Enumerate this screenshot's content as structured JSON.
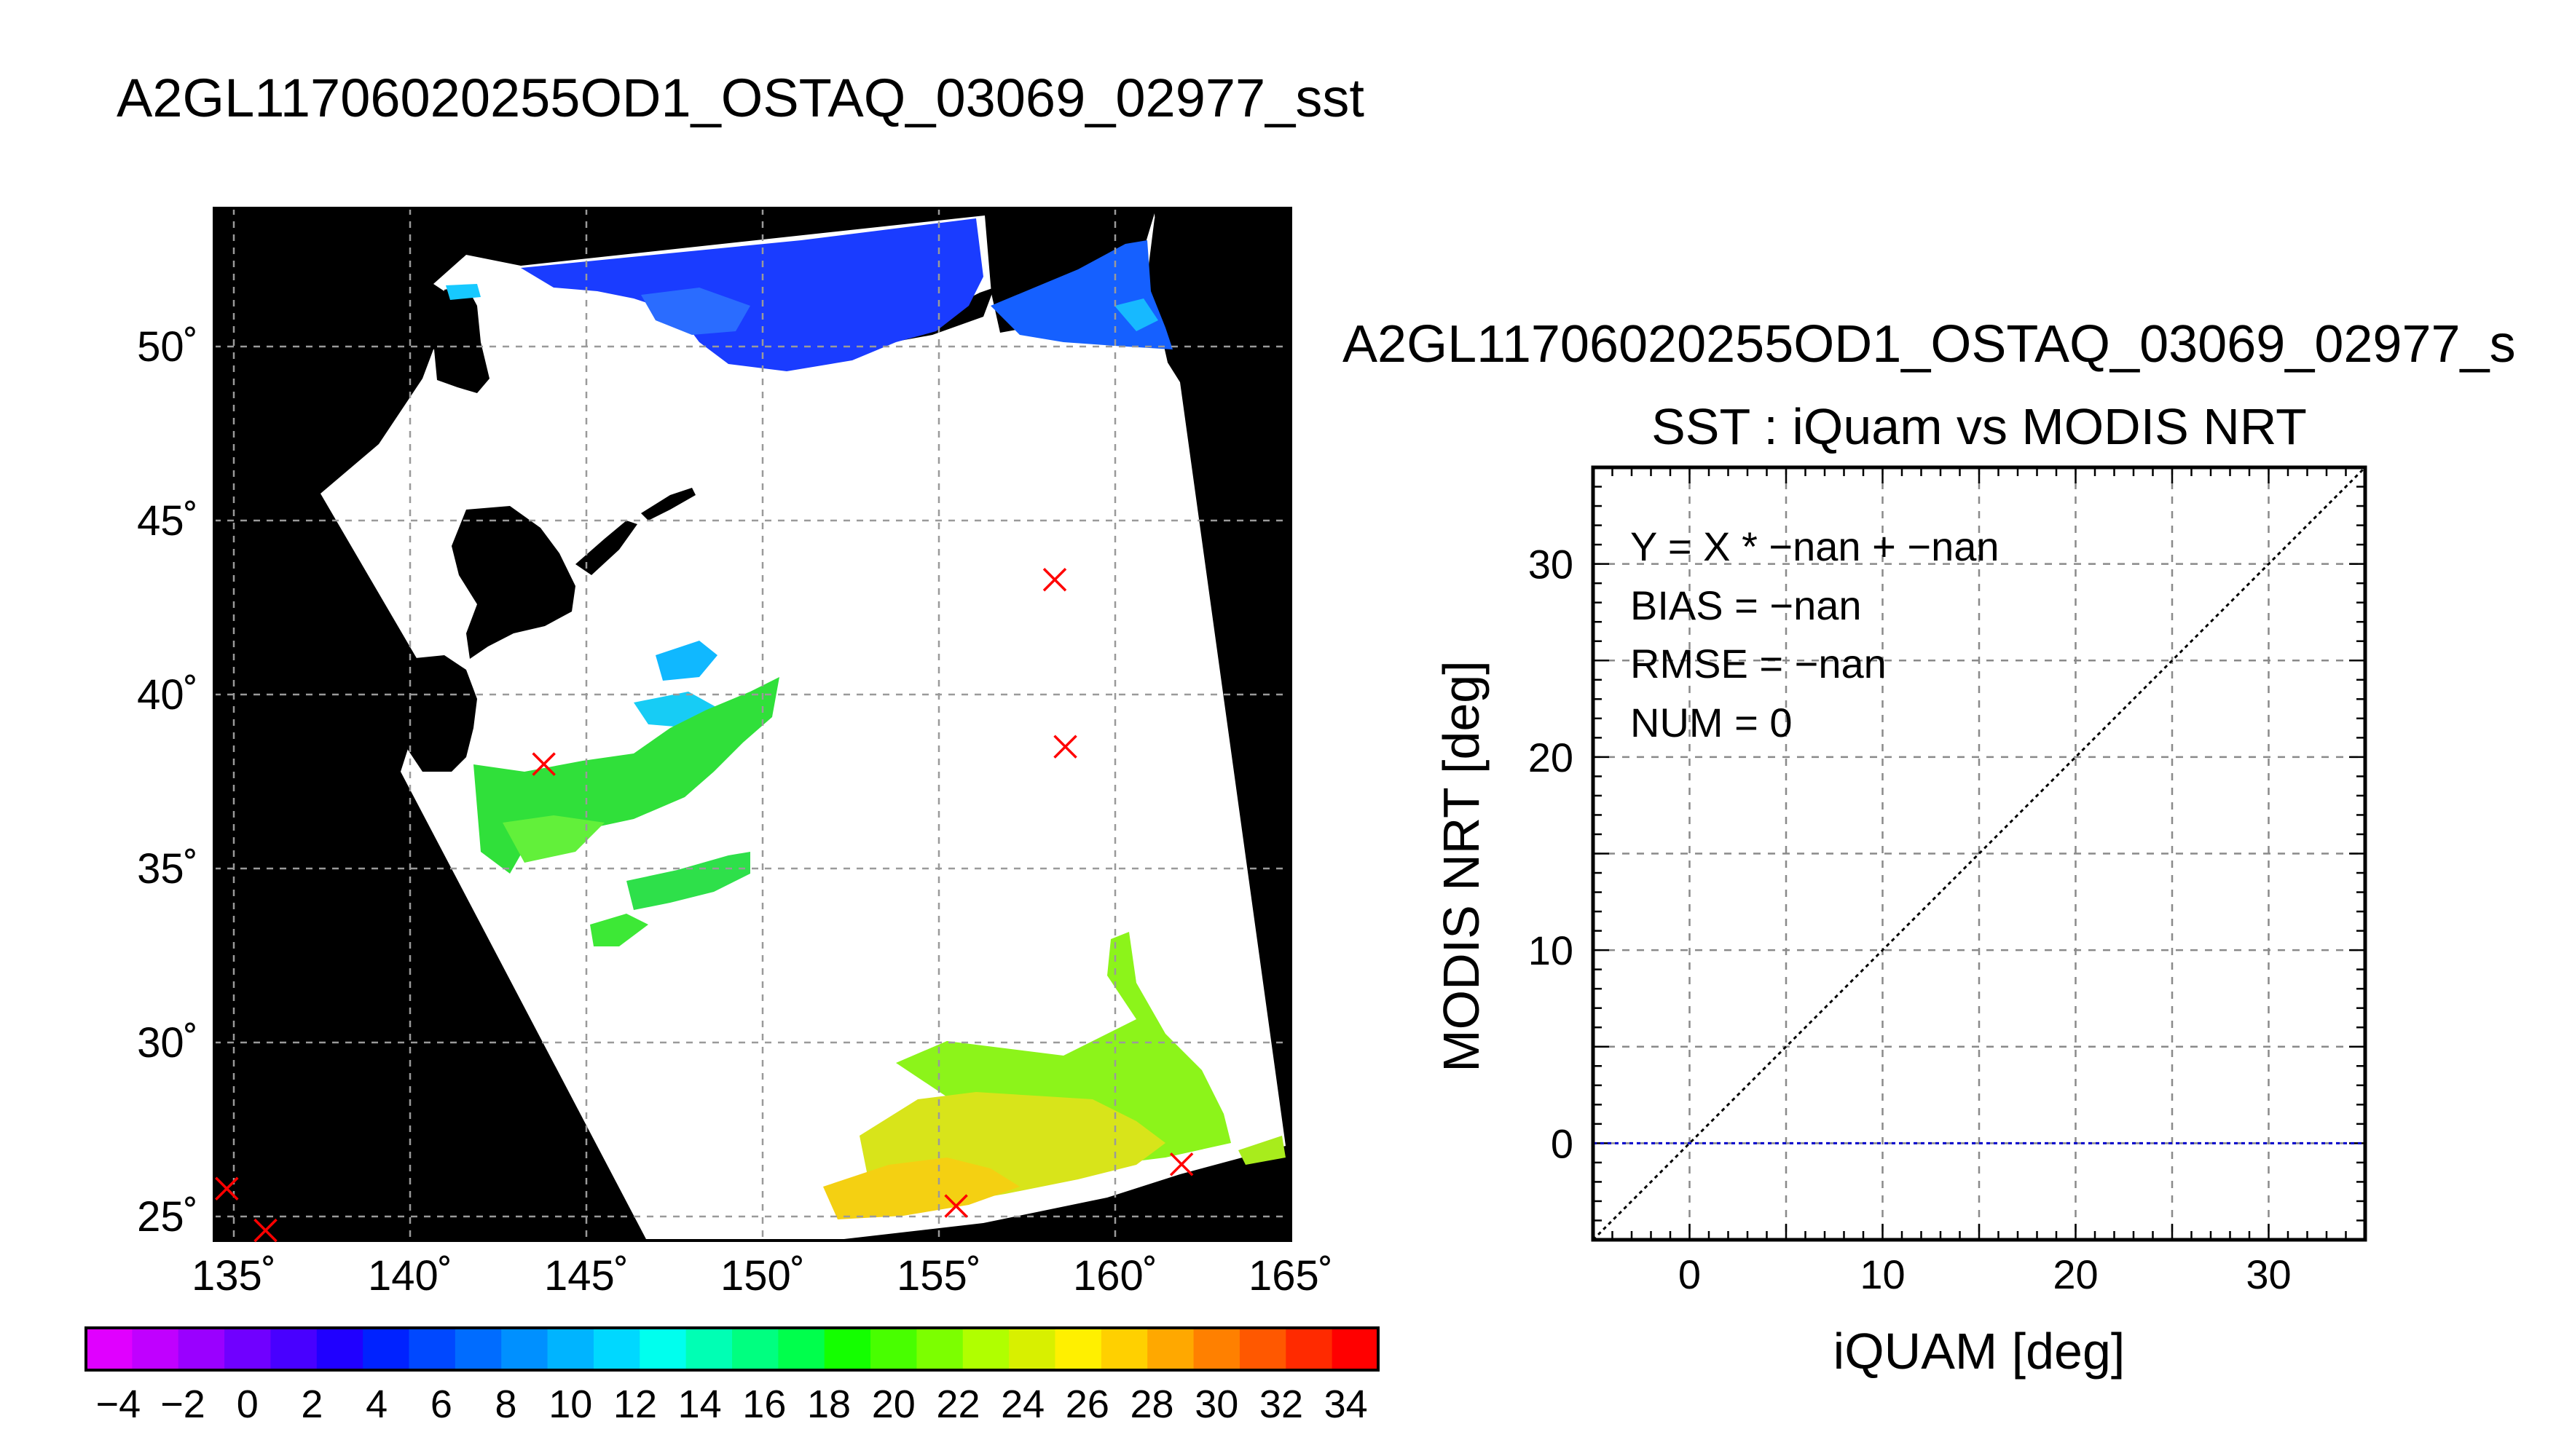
{
  "figure": {
    "title": "A2GL11706020255OD1_OSTAQ_03069_02977_sst"
  },
  "map": {
    "lat_ticks": [
      "50˚",
      "45˚",
      "40˚",
      "35˚",
      "30˚",
      "25˚"
    ],
    "lon_ticks": [
      "135˚",
      "140˚",
      "145˚",
      "150˚",
      "155˚",
      "160˚",
      "165˚"
    ],
    "colors": {
      "background": "#000000",
      "cloud": "#ffffff",
      "marker": "#ff0000",
      "grid": "#9a9a9a"
    },
    "markers": [
      {
        "lon": 158.3,
        "lat": 43.3
      },
      {
        "lon": 158.6,
        "lat": 38.5
      },
      {
        "lon": 143.8,
        "lat": 38.0
      },
      {
        "lon": 134.8,
        "lat": 25.8
      },
      {
        "lon": 135.9,
        "lat": 24.6
      },
      {
        "lon": 155.5,
        "lat": 25.3
      },
      {
        "lon": 161.9,
        "lat": 26.5
      }
    ]
  },
  "colorbar": {
    "labels": [
      "−4",
      "−2",
      "0",
      "2",
      "4",
      "6",
      "8",
      "10",
      "12",
      "14",
      "16",
      "18",
      "20",
      "22",
      "24",
      "26",
      "28",
      "30",
      "32",
      "34"
    ],
    "colors": [
      "#e000ff",
      "#c000ff",
      "#9a00ff",
      "#7000ff",
      "#4800ff",
      "#2000ff",
      "#0022ff",
      "#0048ff",
      "#006cff",
      "#0090ff",
      "#00b4ff",
      "#00d8ff",
      "#00ffee",
      "#00ffb4",
      "#00ff80",
      "#00ff4c",
      "#14ff00",
      "#48ff00",
      "#7cff00",
      "#b0ff00",
      "#d8f000",
      "#fff000",
      "#ffd000",
      "#ffa800",
      "#ff8000",
      "#ff5800",
      "#ff2a00",
      "#ff0000"
    ]
  },
  "chart_data": {
    "type": "scatter",
    "file_title": "A2GL11706020255OD1_OSTAQ_03069_02977_s",
    "title": "SST : iQuam vs MODIS NRT",
    "xlabel": "iQUAM [deg]",
    "ylabel": "MODIS NRT [deg]",
    "xlim": [
      -5,
      35
    ],
    "ylim": [
      -5,
      35
    ],
    "x_ticks": [
      0,
      10,
      20,
      30
    ],
    "y_ticks": [
      0,
      10,
      20,
      30
    ],
    "grid": true,
    "points": [],
    "lines": [
      {
        "name": "1:1",
        "x": [
          -5,
          35
        ],
        "y": [
          -5,
          35
        ],
        "color": "#000000",
        "style": "dotted"
      },
      {
        "name": "zero",
        "x": [
          -5,
          35
        ],
        "y": [
          0,
          0
        ],
        "color": "#0000cc",
        "style": "dotted"
      }
    ],
    "stats": [
      "Y = X * −nan + −nan",
      "BIAS = −nan",
      "RMSE = −nan",
      "NUM = 0"
    ]
  }
}
